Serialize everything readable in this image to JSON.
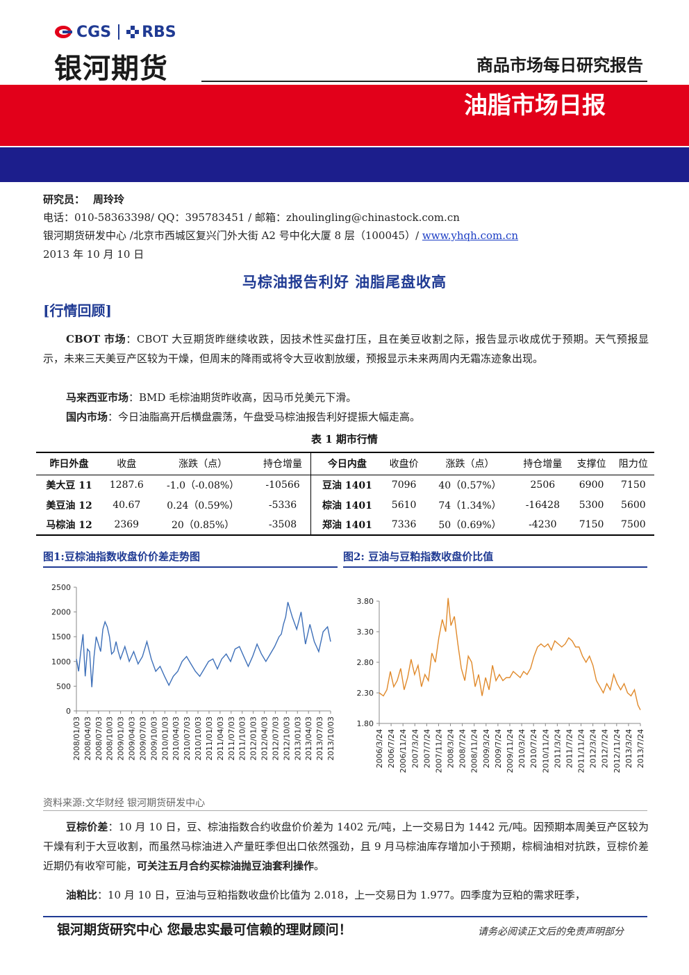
{
  "header": {
    "logo_en_1": "CGS",
    "logo_en_2": "RBS",
    "logo_cn": "银河期货",
    "report_kind": "商品市场每日研究报告",
    "red_title": "油脂市场日报",
    "colors": {
      "red": "#e2001a",
      "blue": "#1c1e8c",
      "accent": "#1f3a93"
    }
  },
  "meta": {
    "analyst_label": "研究员：",
    "analyst_name": "周玲玲",
    "contact": "电话：010-58363398/ QQ：395783451 / 邮箱：zhoulingling@chinastock.com.cn",
    "address": "银河期货研发中心 /北京市西城区复兴门外大街 A2 号中化大厦 8 层（100045）/ ",
    "website": "www.yhqh.com.cn",
    "date": "2013 年 10 月 10 日"
  },
  "title": "马棕油报告利好  油脂尾盘收高",
  "section_review": "[行情回顾]",
  "paragraphs": {
    "cbot_label": "CBOT 市场",
    "cbot_text": "：CBOT 大豆期货昨继续收跌，因技术性买盘打压，且在美豆收割之际，报告显示收成优于预期。天气预报显示，未来三天美豆产区较为干燥，但周末的降雨或将令大豆收割放缓，预报显示未来两周内无霜冻迹象出现。",
    "my_label": "马来西亚市场",
    "my_text": "：BMD 毛棕油期货昨收高，因马币兑美元下滑。",
    "dom_label": "国内市场",
    "dom_text": "：今日油脂高开后横盘震荡，午盘受马棕油报告利好提振大幅走高。"
  },
  "table": {
    "title": "表 1   期市行情",
    "headers": [
      "昨日外盘",
      "收盘",
      "涨跌（点）",
      "持仓增量",
      "今日内盘",
      "收盘价",
      "涨跌（点）",
      "持仓增量",
      "支撑位",
      "阻力位"
    ],
    "rows": [
      [
        "美大豆 11",
        "1287.6",
        "-1.0（-0.08%）",
        "-10566",
        "豆油 1401",
        "7096",
        "40（0.57%）",
        "2506",
        "6900",
        "7150"
      ],
      [
        "美豆油 12",
        "40.67",
        "0.24（0.59%）",
        "-5336",
        "棕油 1401",
        "5610",
        "74（1.34%）",
        "-16428",
        "5300",
        "5600"
      ],
      [
        "马棕油 12",
        "2369",
        "20（0.85%）",
        "-3508",
        "郑油 1401",
        "7336",
        "50（0.69%）",
        "-4230",
        "7150",
        "7500"
      ]
    ]
  },
  "figures": {
    "fig1_title": "图1:豆棕油指数收盘价价差走势图",
    "fig2_title": "图2: 豆油与豆粕指数收盘价比值"
  },
  "chart_data": [
    {
      "type": "line",
      "title": "图1:豆棕油指数收盘价价差走势图",
      "xlabel": "",
      "ylabel": "",
      "ylim": [
        0,
        2500
      ],
      "yticks": [
        "0",
        "500",
        "1000",
        "1500",
        "2000",
        "2500"
      ],
      "xticks": [
        "2008/01/03",
        "2008/04/03",
        "2008/07/03",
        "2008/10/03",
        "2009/01/03",
        "2009/04/03",
        "2009/07/03",
        "2009/10/03",
        "2010/01/03",
        "2010/04/03",
        "2010/07/03",
        "2010/10/03",
        "2011/01/03",
        "2011/04/03",
        "2011/07/03",
        "2011/10/03",
        "2012/01/03",
        "2012/04/03",
        "2012/07/03",
        "2012/10/03",
        "2013/01/03",
        "2013/04/03",
        "2013/07/03",
        "2013/10/03"
      ],
      "color": "#3d6fb8",
      "series": [
        {
          "x": [
            2008.0,
            2008.05,
            2008.1,
            2008.15,
            2008.2,
            2008.25,
            2008.3,
            2008.35,
            2008.4,
            2008.45,
            2008.5,
            2008.55,
            2008.6,
            2008.65,
            2008.7,
            2008.75,
            2008.8,
            2008.85,
            2008.9,
            2008.95,
            2009.0,
            2009.1,
            2009.2,
            2009.3,
            2009.4,
            2009.5,
            2009.6,
            2009.7,
            2009.8,
            2009.9,
            2010.0,
            2010.1,
            2010.2,
            2010.3,
            2010.4,
            2010.5,
            2010.6,
            2010.7,
            2010.8,
            2010.9,
            2011.0,
            2011.1,
            2011.2,
            2011.3,
            2011.4,
            2011.5,
            2011.6,
            2011.7,
            2011.8,
            2011.9,
            2012.0,
            2012.1,
            2012.2,
            2012.3,
            2012.4,
            2012.5,
            2012.6,
            2012.65,
            2012.7,
            2012.75,
            2012.8,
            2012.9,
            2013.0,
            2013.1,
            2013.2,
            2013.3,
            2013.4,
            2013.5,
            2013.6,
            2013.7,
            2013.77
          ],
          "values": [
            1050,
            800,
            1200,
            1550,
            700,
            1250,
            1200,
            480,
            1100,
            1500,
            1350,
            1200,
            1650,
            1800,
            1700,
            1500,
            1150,
            1200,
            1400,
            1200,
            1050,
            1300,
            1000,
            1200,
            950,
            1100,
            1400,
            1050,
            800,
            900,
            700,
            520,
            700,
            800,
            1000,
            1100,
            950,
            800,
            700,
            850,
            1000,
            1050,
            850,
            1050,
            1150,
            1000,
            1250,
            1300,
            1100,
            900,
            1100,
            1350,
            1150,
            1000,
            1150,
            1300,
            1500,
            1550,
            1750,
            1900,
            2200,
            1900,
            1650,
            2000,
            1350,
            1750,
            1400,
            1200,
            1600,
            1700,
            1400
          ]
        }
      ]
    },
    {
      "type": "line",
      "title": "图2: 豆油与豆粕指数收盘价比值",
      "xlabel": "",
      "ylabel": "",
      "ylim": [
        1.8,
        3.8
      ],
      "yticks": [
        "1.80",
        "2.30",
        "2.80",
        "3.30",
        "3.80"
      ],
      "xticks": [
        "2006/3/24",
        "2006/7/24",
        "2006/11/24",
        "2007/3/24",
        "2007/7/24",
        "2007/11/24",
        "2008/3/24",
        "2008/7/24",
        "2008/11/24",
        "2009/3/24",
        "2009/7/24",
        "2009/11/24",
        "2010/3/24",
        "2010/7/24",
        "2010/11/24",
        "2011/3/24",
        "2011/7/24",
        "2011/11/24",
        "2012/3/24",
        "2012/7/24",
        "2012/11/24",
        "2013/3/24",
        "2013/7/24"
      ],
      "color": "#e0892a",
      "series": [
        {
          "x": [
            2006.23,
            2006.35,
            2006.45,
            2006.55,
            2006.65,
            2006.75,
            2006.85,
            2006.95,
            2007.05,
            2007.15,
            2007.25,
            2007.35,
            2007.45,
            2007.55,
            2007.65,
            2007.75,
            2007.85,
            2007.95,
            2008.05,
            2008.15,
            2008.22,
            2008.3,
            2008.4,
            2008.5,
            2008.6,
            2008.7,
            2008.8,
            2008.9,
            2009.0,
            2009.1,
            2009.2,
            2009.3,
            2009.4,
            2009.5,
            2009.6,
            2009.7,
            2009.8,
            2009.9,
            2010.0,
            2010.1,
            2010.2,
            2010.3,
            2010.4,
            2010.5,
            2010.6,
            2010.7,
            2010.8,
            2010.9,
            2011.0,
            2011.1,
            2011.2,
            2011.3,
            2011.4,
            2011.5,
            2011.6,
            2011.7,
            2011.8,
            2011.9,
            2012.0,
            2012.1,
            2012.2,
            2012.3,
            2012.4,
            2012.5,
            2012.6,
            2012.7,
            2012.8,
            2012.9,
            2013.0,
            2013.1,
            2013.2,
            2013.3,
            2013.4,
            2013.5,
            2013.6,
            2013.7,
            2013.77
          ],
          "values": [
            2.3,
            2.25,
            2.35,
            2.65,
            2.4,
            2.5,
            2.7,
            2.35,
            2.55,
            2.85,
            2.6,
            2.75,
            2.4,
            2.6,
            2.5,
            2.95,
            2.8,
            3.2,
            3.5,
            3.3,
            3.85,
            3.4,
            3.55,
            3.1,
            2.7,
            2.5,
            2.9,
            2.8,
            2.4,
            2.6,
            2.25,
            2.55,
            2.35,
            2.75,
            2.5,
            2.6,
            2.5,
            2.55,
            2.55,
            2.65,
            2.6,
            2.55,
            2.65,
            2.6,
            2.7,
            2.9,
            3.05,
            3.1,
            3.05,
            3.1,
            3.0,
            3.15,
            3.1,
            3.05,
            3.1,
            3.2,
            3.15,
            3.05,
            3.05,
            2.9,
            2.8,
            2.9,
            2.75,
            2.5,
            2.4,
            2.3,
            2.45,
            2.35,
            2.6,
            2.45,
            2.35,
            2.45,
            2.3,
            2.25,
            2.35,
            2.1,
            2.02
          ]
        }
      ]
    }
  ],
  "source": "资料来源:文华财经    银河期货研发中心",
  "analysis": {
    "spread_label": "豆棕价差",
    "spread_text": "：10 月 10 日，豆、棕油指数合约收盘价价差为 1402 元/吨，上一交易日为 1442 元/吨。因预期本周美豆产区较为干燥有利于大豆收割，而虽然马棕油进入产量旺季但出口依然强劲，且 9 月马棕油库存增加小于预期，棕榈油相对抗跌，豆棕价差近期仍有收窄可能，",
    "spread_bold": "可关注五月合约买棕油抛豆油套利操作",
    "spread_end": "。",
    "ratio_label": "油粕比",
    "ratio_text": "：10 月 10 日，豆油与豆粕指数收盘价比值为 2.018，上一交易日为 1.977。四季度为豆粕的需求旺季，"
  },
  "footer": {
    "left": "银河期货研究中心   您最忠实最可信赖的理财顾问！",
    "right": "请务必阅读正文后的免责声明部分"
  }
}
